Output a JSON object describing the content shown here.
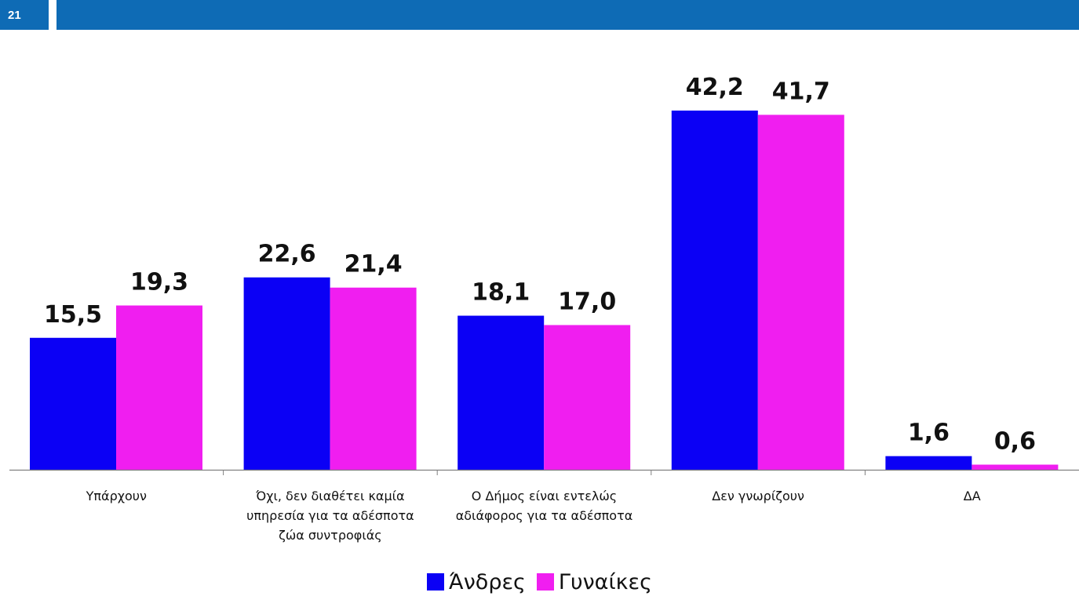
{
  "page": {
    "number": "21"
  },
  "colors": {
    "header": "#0e6bb5",
    "series_men": "#0b00f5",
    "series_women": "#f01ef0"
  },
  "chart_data": {
    "type": "bar",
    "title": "",
    "xlabel": "",
    "ylabel": "",
    "ylim": [
      0,
      45
    ],
    "grid": false,
    "legend_position": "bottom",
    "categories": [
      [
        "Υπάρχουν"
      ],
      [
        "Όχι, δεν διαθέτει καμία",
        "υπηρεσία για τα αδέσποτα",
        "ζώα συντροφιάς"
      ],
      [
        "Ο Δήμος είναι εντελώς",
        "αδιάφορος για τα αδέσποτα"
      ],
      [
        "Δεν γνωρίζουν"
      ],
      [
        "ΔΑ"
      ]
    ],
    "series": [
      {
        "name": "Άνδρες",
        "values": [
          15.5,
          22.6,
          18.1,
          42.2,
          1.6
        ],
        "labels": [
          "15,5",
          "22,6",
          "18,1",
          "42,2",
          "1,6"
        ]
      },
      {
        "name": "Γυναίκες",
        "values": [
          19.3,
          21.4,
          17.0,
          41.7,
          0.6
        ],
        "labels": [
          "19,3",
          "21,4",
          "17,0",
          "41,7",
          "0,6"
        ]
      }
    ]
  }
}
